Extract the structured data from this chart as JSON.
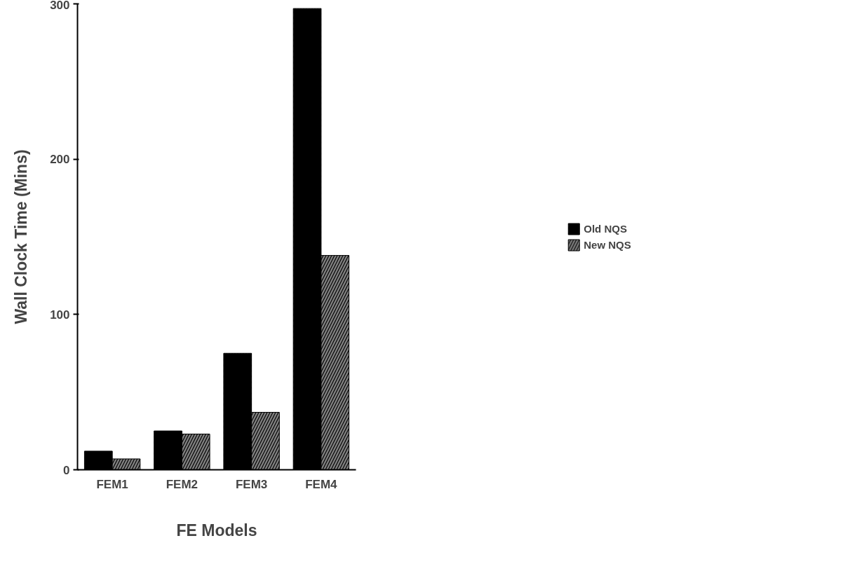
{
  "chart_data": {
    "type": "bar",
    "xlabel": "FE Models",
    "ylabel": "Wall Clock Time (Mins)",
    "categories": [
      "FEM1",
      "FEM2",
      "FEM3",
      "FEM4"
    ],
    "series": [
      {
        "name": "Old NQS",
        "color": "#000000",
        "values": [
          12,
          25,
          75,
          297
        ]
      },
      {
        "name": "New NQS",
        "color": "#808080",
        "values": [
          7,
          23,
          37,
          138
        ]
      }
    ],
    "ylim": [
      0,
      300
    ],
    "yticks": [
      0,
      100,
      200,
      300
    ],
    "grid": false,
    "legend": "right"
  }
}
